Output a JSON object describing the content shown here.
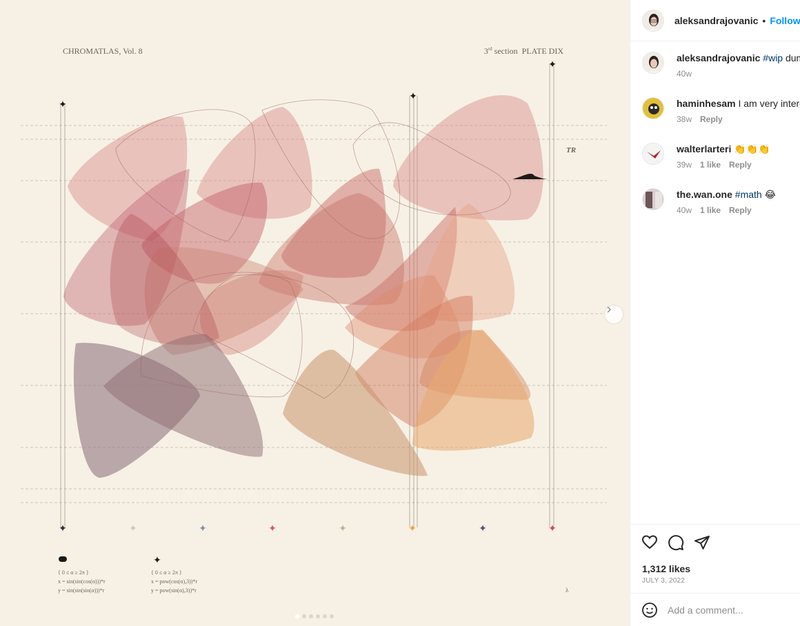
{
  "post": {
    "username": "aleksandrajovanic",
    "separator": "•",
    "follow_label": "Follow",
    "likes": "1,312 likes",
    "date": "JULY 3, 2022",
    "comment_placeholder": "Add a comment...",
    "carousel": {
      "slides": 6,
      "active_slide": 1
    }
  },
  "artwork": {
    "series": "CHROMATLAS, Vol. 8",
    "section_ordinal": "3",
    "section_ordinal_suffix": "rd",
    "section_label": "section",
    "plate": "PLATE DIX",
    "corner_mark": "TR",
    "formula_1": {
      "domain": "{ 0 ≤ α ≥ 2π }",
      "x": "x = sin(sin(cos(α)))*r",
      "y": "y = sin(sin(sin(α)))*r"
    },
    "formula_2": {
      "domain": "{ 0 ≤ α ≥ 2π }",
      "x": "x = pow(cos(α),3))*r",
      "y": "y = pow(sin(α),3))*r"
    },
    "footer_mark": "λ",
    "palette": [
      "#b84a55",
      "#c6653f",
      "#d9955a",
      "#8a6a72",
      "#c4a080",
      "#e5b385"
    ]
  },
  "comments": [
    {
      "username": "aleksandrajovanic",
      "tag": "#wip",
      "text": " dummy",
      "age": "40w",
      "likes": "",
      "reply": ""
    },
    {
      "username": "haminhesam",
      "tag": "",
      "text": "I am very interested",
      "age": "38w",
      "likes": "",
      "reply": "Reply"
    },
    {
      "username": "walterlarteri",
      "tag": "",
      "text": "👏👏👏",
      "age": "39w",
      "likes": "1 like",
      "reply": "Reply"
    },
    {
      "username": "the.wan.one",
      "tag": "#math",
      "text": " 😂",
      "age": "40w",
      "likes": "1 like",
      "reply": "Reply"
    }
  ],
  "icons": {
    "like": "heart-icon",
    "comment": "comment-bubble-icon",
    "share": "paper-plane-icon",
    "emoji": "smiley-icon",
    "next": "chevron-right-icon"
  }
}
